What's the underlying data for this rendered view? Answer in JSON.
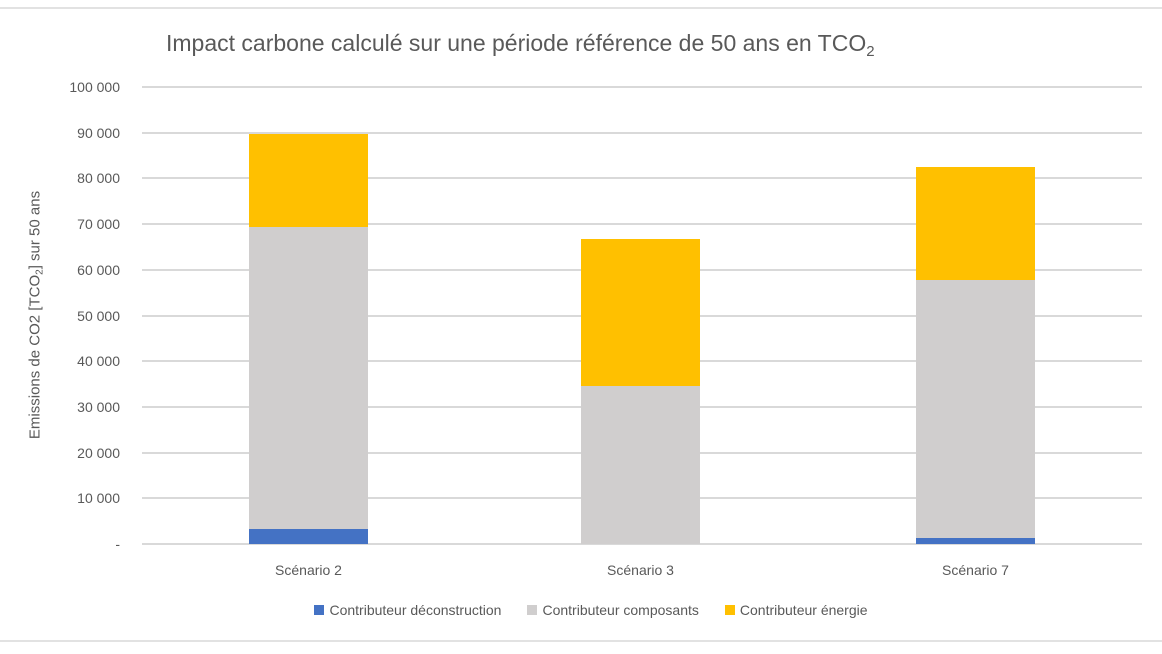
{
  "chart_data": {
    "type": "bar",
    "stacked": true,
    "title": "Impact carbone calculé sur une période référence de 50 ans en TCO",
    "title_subscript": "2",
    "xlabel": "",
    "ylabel": "Emissions de CO2 [TCO",
    "ylabel_subscript": "2",
    "ylabel_suffix": "] sur 50 ans",
    "ylim": [
      0,
      100000
    ],
    "yticks": [
      0,
      10000,
      20000,
      30000,
      40000,
      50000,
      60000,
      70000,
      80000,
      90000,
      100000
    ],
    "ytick_labels": [
      "-",
      "10 000",
      "20 000",
      "30 000",
      "40 000",
      "50 000",
      "60 000",
      "70 000",
      "80 000",
      "90 000",
      "100 000"
    ],
    "grid": true,
    "legend_position": "bottom",
    "categories": [
      "Scénario 2",
      "Scénario 3",
      "Scénario 7"
    ],
    "series": [
      {
        "name": "Contributeur déconstruction",
        "color": "#4472C4",
        "values": [
          3300,
          0,
          1300
        ]
      },
      {
        "name": "Contributeur composants",
        "color": "#D0CECE",
        "values": [
          66100,
          34600,
          56500
        ]
      },
      {
        "name": "Contributeur énergie",
        "color": "#FFC000",
        "values": [
          20400,
          32100,
          24700
        ]
      }
    ],
    "totals": [
      89800,
      66700,
      82500
    ]
  },
  "title": {
    "main": "Impact carbone calculé sur une période référence de 50 ans en TCO",
    "sub": "2"
  },
  "axis": {
    "ylabel_main": "Emissions de CO2 [TCO",
    "ylabel_sub": "2",
    "ylabel_suffix": "] sur 50 ans"
  }
}
